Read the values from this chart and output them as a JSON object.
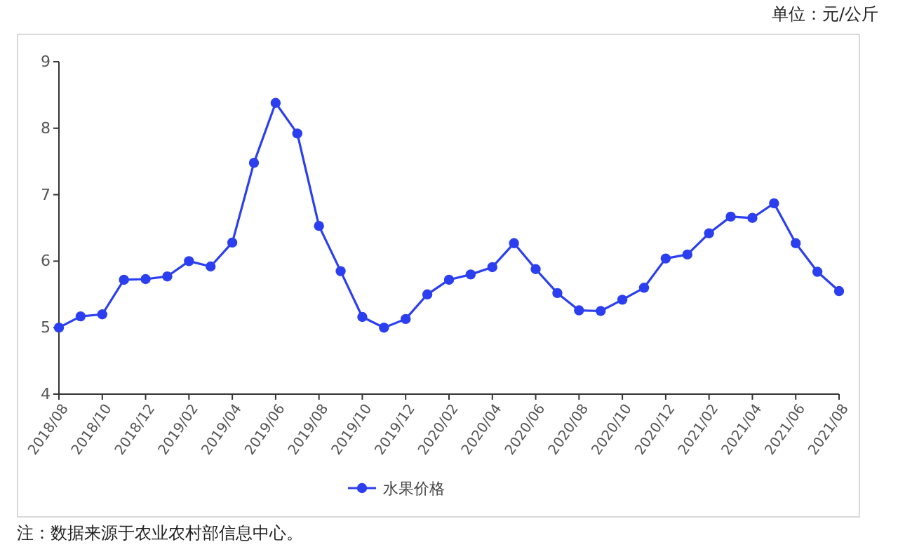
{
  "chart_data": {
    "type": "line",
    "categories": [
      "2018/08",
      null,
      "2018/10",
      null,
      "2018/12",
      null,
      "2019/02",
      null,
      "2019/04",
      null,
      "2019/06",
      null,
      "2019/08",
      null,
      "2019/10",
      null,
      "2019/12",
      null,
      "2020/02",
      null,
      "2020/04",
      null,
      "2020/06",
      null,
      "2020/08",
      null,
      "2020/10",
      null,
      "2020/12",
      null,
      "2021/02",
      null,
      "2021/04",
      null,
      "2021/06",
      null,
      "2021/08"
    ],
    "series": [
      {
        "name": "水果价格",
        "color": "#2b3ff0",
        "values": [
          5.0,
          5.17,
          5.2,
          5.72,
          5.73,
          5.77,
          6.0,
          5.92,
          6.28,
          7.48,
          8.38,
          7.92,
          6.53,
          5.85,
          5.16,
          5.0,
          5.13,
          5.5,
          5.72,
          5.8,
          5.91,
          6.27,
          5.88,
          5.52,
          5.26,
          5.25,
          5.42,
          5.6,
          6.04,
          6.1,
          6.42,
          6.67,
          6.65,
          6.87,
          6.27,
          5.84,
          5.55
        ]
      }
    ],
    "ylim": [
      4,
      9
    ],
    "yticks": [
      4,
      5,
      6,
      7,
      8,
      9
    ],
    "grid": false,
    "legend": "bottom",
    "marker": "circle",
    "line_style": "solid",
    "annotations": [
      "单位：元/公斤",
      "注：数据来源于农业农村部信息中心。"
    ]
  }
}
